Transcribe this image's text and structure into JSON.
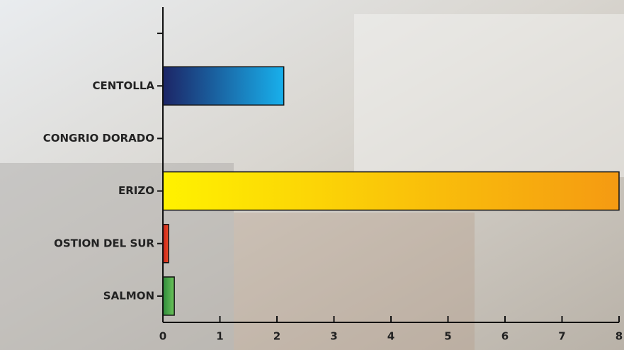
{
  "chart_data": {
    "type": "bar",
    "orientation": "horizontal",
    "categories": [
      null,
      "CENTOLLA",
      "CONGRIO DORADO",
      "ERIZO",
      "OSTION DEL SUR",
      "SALMON"
    ],
    "values": [
      null,
      2.12,
      0,
      8,
      0.1,
      0.2
    ],
    "colors": [
      null,
      [
        "#1c2566",
        "#18b0ec"
      ],
      null,
      [
        "#fff200",
        "#f59a12"
      ],
      [
        "#c0231b",
        "#f04a26"
      ],
      [
        "#2e8a3c",
        "#6cc45a"
      ]
    ],
    "xlim": [
      0,
      8
    ],
    "xticks": [
      0,
      1,
      2,
      3,
      4,
      5,
      6,
      7,
      8
    ]
  }
}
